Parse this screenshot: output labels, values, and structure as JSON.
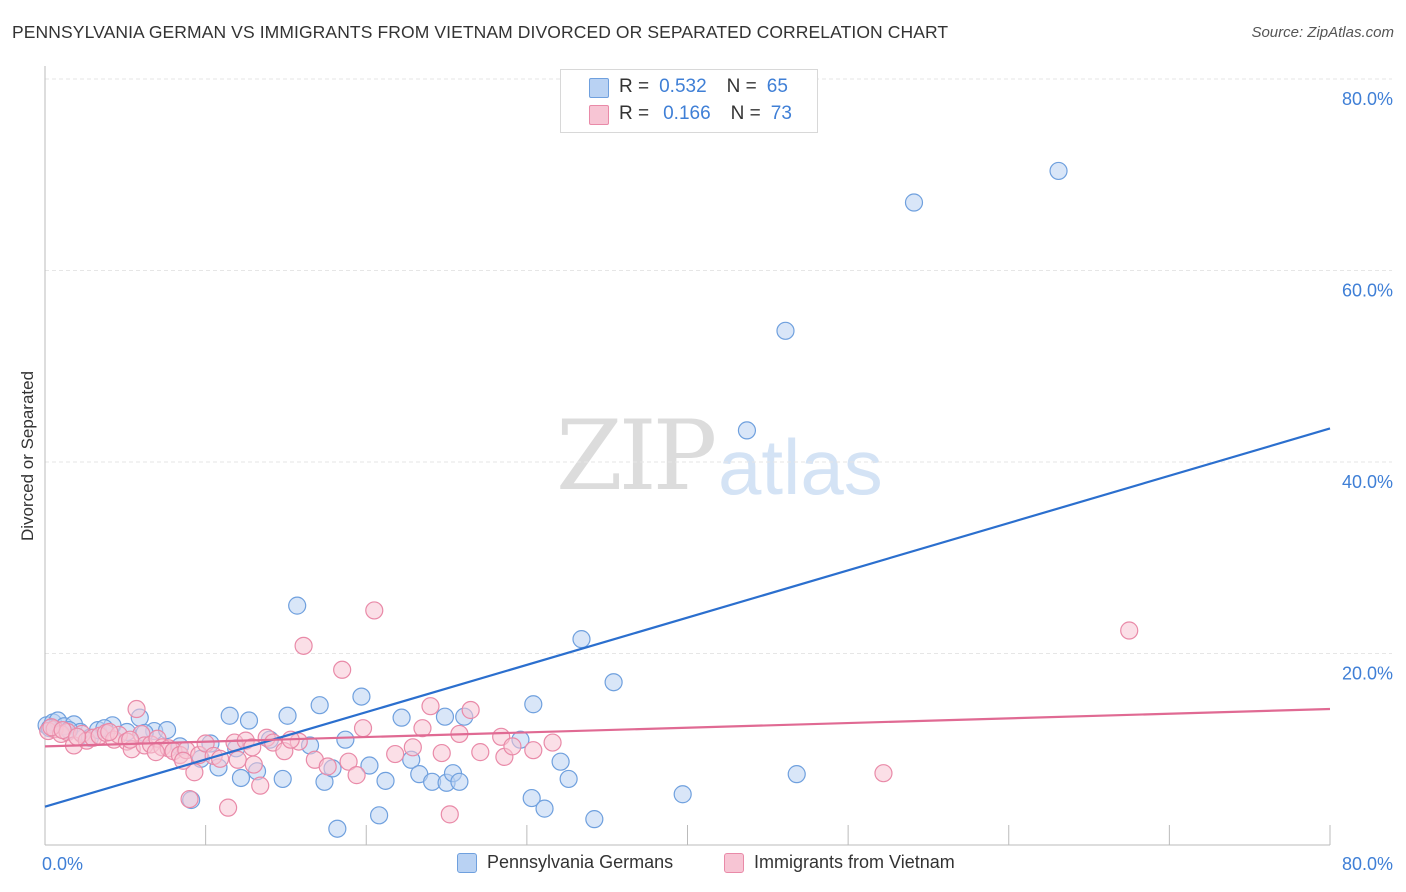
{
  "title": "PENNSYLVANIA GERMAN VS IMMIGRANTS FROM VIETNAM DIVORCED OR SEPARATED CORRELATION CHART",
  "source": "Source: ZipAtlas.com",
  "watermark": {
    "zip": "ZIP",
    "atlas": "atlas"
  },
  "legend_top": {
    "rows": [
      {
        "r_label": "R =",
        "r_value": "0.532",
        "n_label": "N =",
        "n_value": "65"
      },
      {
        "r_label": "R =",
        "r_value": "0.166",
        "n_label": "N =",
        "n_value": "73"
      }
    ]
  },
  "colors": {
    "blue_fill": "#b9d2f3",
    "blue_stroke": "#6fa0de",
    "blue_line": "#2b6fce",
    "pink_fill": "#f7c5d4",
    "pink_stroke": "#e98aa8",
    "pink_line": "#e06a93",
    "tick_label": "#3f7fd6",
    "grid": "#e6e6e6",
    "axis": "#bbbbbb"
  },
  "chart_data": {
    "type": "scatter",
    "title": "PENNSYLVANIA GERMAN VS IMMIGRANTS FROM VIETNAM DIVORCED OR SEPARATED CORRELATION CHART",
    "xlabel": "",
    "ylabel": "Divorced or Separated",
    "xlim": [
      0,
      80
    ],
    "ylim": [
      0,
      80
    ],
    "x_tick_labels": [
      "0.0%",
      "80.0%"
    ],
    "y_ticks": [
      20,
      40,
      60,
      80
    ],
    "y_tick_labels": [
      "20.0%",
      "40.0%",
      "60.0%",
      "80.0%"
    ],
    "grid": true,
    "series": [
      {
        "name": "Pennsylvania Germans",
        "color": "#b9d2f3",
        "R": 0.532,
        "N": 65,
        "trend": [
          [
            0,
            4.0
          ],
          [
            80,
            43.5
          ]
        ],
        "points": [
          [
            0.1,
            12.5
          ],
          [
            0.5,
            12.8
          ],
          [
            0.8,
            13.0
          ],
          [
            1.2,
            12.4
          ],
          [
            1.8,
            12.6
          ],
          [
            2.2,
            11.8
          ],
          [
            2.8,
            11.2
          ],
          [
            3.3,
            12.0
          ],
          [
            4.2,
            12.5
          ],
          [
            5.1,
            11.8
          ],
          [
            5.9,
            13.3
          ],
          [
            6.8,
            11.9
          ],
          [
            7.6,
            12.0
          ],
          [
            8.4,
            10.3
          ],
          [
            9.1,
            4.7
          ],
          [
            9.7,
            9.0
          ],
          [
            10.3,
            10.6
          ],
          [
            10.8,
            8.1
          ],
          [
            11.5,
            13.5
          ],
          [
            11.9,
            10.1
          ],
          [
            12.2,
            7.0
          ],
          [
            12.7,
            13.0
          ],
          [
            13.2,
            7.7
          ],
          [
            14.0,
            11.0
          ],
          [
            14.8,
            6.9
          ],
          [
            15.1,
            13.5
          ],
          [
            15.7,
            25.0
          ],
          [
            16.5,
            10.4
          ],
          [
            17.1,
            14.6
          ],
          [
            17.4,
            6.6
          ],
          [
            17.9,
            8.0
          ],
          [
            18.2,
            1.7
          ],
          [
            18.7,
            11.0
          ],
          [
            19.7,
            15.5
          ],
          [
            20.2,
            8.3
          ],
          [
            20.8,
            3.1
          ],
          [
            21.2,
            6.7
          ],
          [
            22.2,
            13.3
          ],
          [
            22.8,
            8.9
          ],
          [
            23.3,
            7.4
          ],
          [
            24.1,
            6.6
          ],
          [
            24.9,
            13.4
          ],
          [
            25.0,
            6.5
          ],
          [
            25.4,
            7.5
          ],
          [
            25.8,
            6.6
          ],
          [
            26.1,
            13.4
          ],
          [
            29.6,
            11.0
          ],
          [
            30.3,
            4.9
          ],
          [
            30.4,
            14.7
          ],
          [
            31.1,
            3.8
          ],
          [
            32.1,
            8.7
          ],
          [
            32.6,
            6.9
          ],
          [
            33.4,
            21.5
          ],
          [
            34.2,
            2.7
          ],
          [
            35.4,
            17.0
          ],
          [
            39.7,
            5.3
          ],
          [
            43.7,
            43.3
          ],
          [
            46.1,
            53.7
          ],
          [
            46.8,
            7.4
          ],
          [
            54.1,
            67.1
          ],
          [
            63.1,
            70.4
          ],
          [
            0.3,
            12.2
          ],
          [
            1.5,
            12.0
          ],
          [
            3.7,
            12.2
          ],
          [
            6.2,
            11.7
          ]
        ]
      },
      {
        "name": "Immigrants from Vietnam",
        "color": "#f7c5d4",
        "R": 0.166,
        "N": 73,
        "trend": [
          [
            0,
            10.3
          ],
          [
            80,
            14.2
          ]
        ],
        "points": [
          [
            0.2,
            11.9
          ],
          [
            0.6,
            12.1
          ],
          [
            1.0,
            11.6
          ],
          [
            1.4,
            11.8
          ],
          [
            1.8,
            10.4
          ],
          [
            2.3,
            11.6
          ],
          [
            2.6,
            10.9
          ],
          [
            3.0,
            11.2
          ],
          [
            3.4,
            11.4
          ],
          [
            3.8,
            11.7
          ],
          [
            4.3,
            11.0
          ],
          [
            4.6,
            11.5
          ],
          [
            5.1,
            10.8
          ],
          [
            5.4,
            10.0
          ],
          [
            5.7,
            14.2
          ],
          [
            6.0,
            11.6
          ],
          [
            6.2,
            10.4
          ],
          [
            6.6,
            10.5
          ],
          [
            7.0,
            11.1
          ],
          [
            7.3,
            10.2
          ],
          [
            7.7,
            10.1
          ],
          [
            8.0,
            9.8
          ],
          [
            8.4,
            9.4
          ],
          [
            8.8,
            9.9
          ],
          [
            9.0,
            4.8
          ],
          [
            9.3,
            7.6
          ],
          [
            9.6,
            9.4
          ],
          [
            10.0,
            10.6
          ],
          [
            10.5,
            9.3
          ],
          [
            10.9,
            9.0
          ],
          [
            11.4,
            3.9
          ],
          [
            11.8,
            10.7
          ],
          [
            12.0,
            8.9
          ],
          [
            12.5,
            10.9
          ],
          [
            13.0,
            8.4
          ],
          [
            13.4,
            6.2
          ],
          [
            13.8,
            11.2
          ],
          [
            14.2,
            10.7
          ],
          [
            14.9,
            9.8
          ],
          [
            15.8,
            10.8
          ],
          [
            16.1,
            20.8
          ],
          [
            16.8,
            8.9
          ],
          [
            17.6,
            8.2
          ],
          [
            18.5,
            18.3
          ],
          [
            18.9,
            8.7
          ],
          [
            19.4,
            7.3
          ],
          [
            19.8,
            12.2
          ],
          [
            20.5,
            24.5
          ],
          [
            22.9,
            10.2
          ],
          [
            23.5,
            12.2
          ],
          [
            24.0,
            14.5
          ],
          [
            24.7,
            9.6
          ],
          [
            25.2,
            3.2
          ],
          [
            25.8,
            11.6
          ],
          [
            26.5,
            14.1
          ],
          [
            27.1,
            9.7
          ],
          [
            28.4,
            11.3
          ],
          [
            28.6,
            9.2
          ],
          [
            29.1,
            10.3
          ],
          [
            30.4,
            9.9
          ],
          [
            31.6,
            10.7
          ],
          [
            52.2,
            7.5
          ],
          [
            67.5,
            22.4
          ],
          [
            0.4,
            12.3
          ],
          [
            1.1,
            12.0
          ],
          [
            2.0,
            11.3
          ],
          [
            4.0,
            11.8
          ],
          [
            5.3,
            11.0
          ],
          [
            6.9,
            9.7
          ],
          [
            8.6,
            8.8
          ],
          [
            12.9,
            10.2
          ],
          [
            15.3,
            11.0
          ],
          [
            21.8,
            9.5
          ]
        ]
      }
    ]
  },
  "legend_bottom": {
    "items": [
      {
        "label": "Pennsylvania Germans"
      },
      {
        "label": "Immigrants from Vietnam"
      }
    ]
  }
}
